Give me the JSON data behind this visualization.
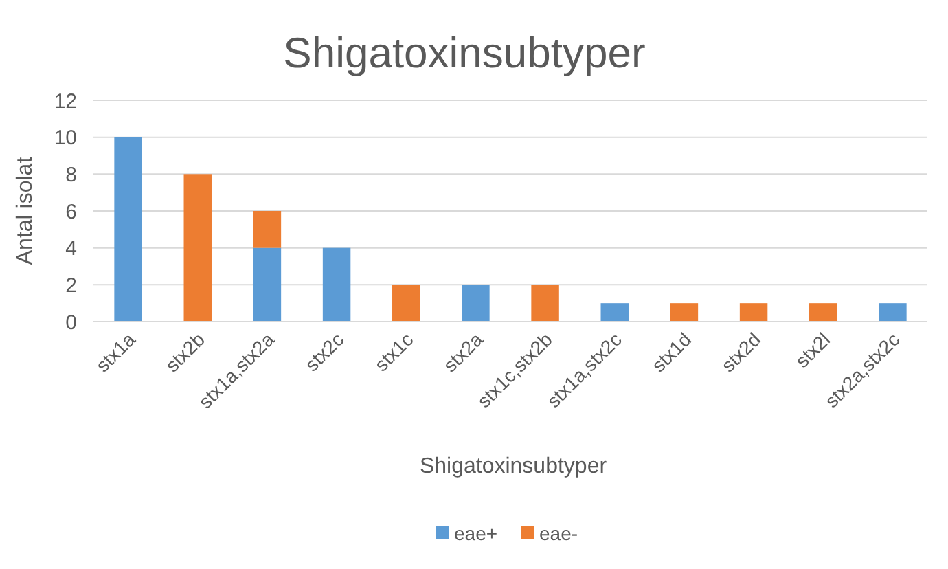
{
  "chart_data": {
    "type": "bar",
    "title": "Shigatoxinsubtyper",
    "xlabel": "Shigatoxinsubtyper",
    "ylabel": "Antal isolat",
    "categories": [
      "stx1a",
      "stx2b",
      "stx1a,stx2a",
      "stx2c",
      "stx1c",
      "stx2a",
      "stx1c,stx2b",
      "stx1a,stx2c",
      "stx1d",
      "stx2d",
      "stx2l",
      "stx2a,stx2c"
    ],
    "series": [
      {
        "name": "eae+",
        "color": "#5b9bd5",
        "values": [
          10,
          0,
          4,
          4,
          0,
          2,
          0,
          1,
          0,
          0,
          0,
          1
        ]
      },
      {
        "name": "eae-",
        "color": "#ed7d31",
        "values": [
          0,
          8,
          2,
          0,
          2,
          0,
          2,
          0,
          1,
          1,
          1,
          0
        ]
      }
    ],
    "stacked": true,
    "ylim": [
      0,
      12
    ],
    "yticks": [
      0,
      2,
      4,
      6,
      8,
      10,
      12
    ],
    "grid": "y",
    "legend": "bottom"
  }
}
